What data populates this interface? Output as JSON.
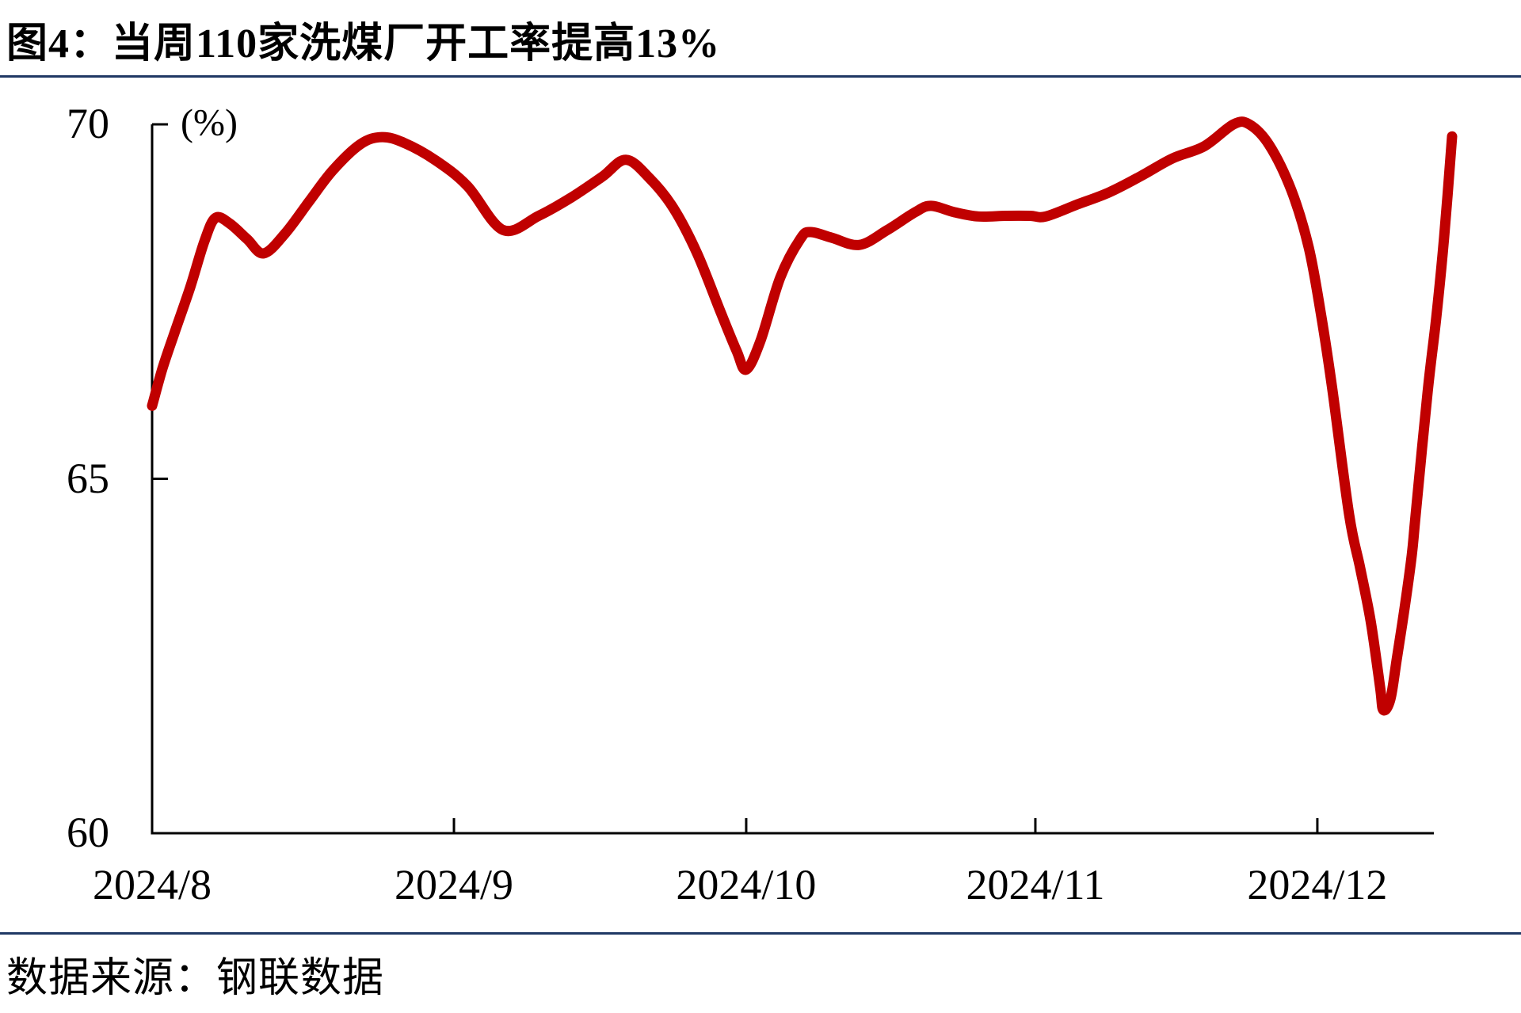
{
  "title": "图4：当周110家洗煤厂开工率提高13%",
  "source": "数据来源：钢联数据",
  "colors": {
    "line": "#C00000",
    "divider": "#1F3864",
    "axis": "#000000",
    "text": "#000000"
  },
  "chart_data": {
    "type": "line",
    "title": "图4：当周110家洗煤厂开工率提高13%",
    "unit_label": "(%)",
    "ylabel": "(%)",
    "xlabel": "",
    "ylim": [
      60,
      70
    ],
    "y_ticks": [
      60,
      65,
      70
    ],
    "x_tick_labels": [
      "2024/8",
      "2024/9",
      "2024/10",
      "2024/11",
      "2024/12"
    ],
    "x_tick_positions": [
      0,
      0.2355,
      0.4635,
      0.6891,
      0.9091
    ],
    "grid": false,
    "legend": "none",
    "points": [
      [
        0.0,
        66.03
      ],
      [
        0.008,
        66.55
      ],
      [
        0.0173,
        67.05
      ],
      [
        0.0297,
        67.7
      ],
      [
        0.0408,
        68.35
      ],
      [
        0.0494,
        68.68
      ],
      [
        0.0606,
        68.6
      ],
      [
        0.0742,
        68.38
      ],
      [
        0.0871,
        68.18
      ],
      [
        0.1038,
        68.46
      ],
      [
        0.1224,
        68.91
      ],
      [
        0.1409,
        69.35
      ],
      [
        0.1625,
        69.72
      ],
      [
        0.1792,
        69.82
      ],
      [
        0.1965,
        69.74
      ],
      [
        0.2213,
        69.49
      ],
      [
        0.246,
        69.13
      ],
      [
        0.2738,
        68.51
      ],
      [
        0.3016,
        68.71
      ],
      [
        0.3263,
        68.96
      ],
      [
        0.3511,
        69.26
      ],
      [
        0.3696,
        69.5
      ],
      [
        0.3881,
        69.24
      ],
      [
        0.4067,
        68.82
      ],
      [
        0.4252,
        68.18
      ],
      [
        0.4438,
        67.34
      ],
      [
        0.4561,
        66.8
      ],
      [
        0.4635,
        66.54
      ],
      [
        0.4747,
        66.95
      ],
      [
        0.4901,
        67.84
      ],
      [
        0.5056,
        68.38
      ],
      [
        0.5136,
        68.48
      ],
      [
        0.5303,
        68.4
      ],
      [
        0.5519,
        68.3
      ],
      [
        0.5736,
        68.51
      ],
      [
        0.5952,
        68.76
      ],
      [
        0.6076,
        68.85
      ],
      [
        0.6261,
        68.76
      ],
      [
        0.6447,
        68.7
      ],
      [
        0.6663,
        68.71
      ],
      [
        0.6849,
        68.71
      ],
      [
        0.6972,
        68.7
      ],
      [
        0.7219,
        68.87
      ],
      [
        0.7466,
        69.04
      ],
      [
        0.7714,
        69.27
      ],
      [
        0.7961,
        69.52
      ],
      [
        0.8208,
        69.69
      ],
      [
        0.8437,
        70.0
      ],
      [
        0.856,
        70.0
      ],
      [
        0.8715,
        69.71
      ],
      [
        0.8888,
        69.07
      ],
      [
        0.9024,
        68.26
      ],
      [
        0.9123,
        67.28
      ],
      [
        0.9209,
        66.25
      ],
      [
        0.9339,
        64.49
      ],
      [
        0.9425,
        63.74
      ],
      [
        0.9506,
        63.0
      ],
      [
        0.958,
        62.07
      ],
      [
        0.9605,
        61.74
      ],
      [
        0.9661,
        61.89
      ],
      [
        0.971,
        62.45
      ],
      [
        0.9772,
        63.18
      ],
      [
        0.9828,
        63.93
      ],
      [
        0.9858,
        64.49
      ],
      [
        0.9951,
        66.22
      ],
      [
        1.0019,
        67.28
      ],
      [
        1.008,
        68.4
      ],
      [
        1.0142,
        69.83
      ]
    ]
  }
}
